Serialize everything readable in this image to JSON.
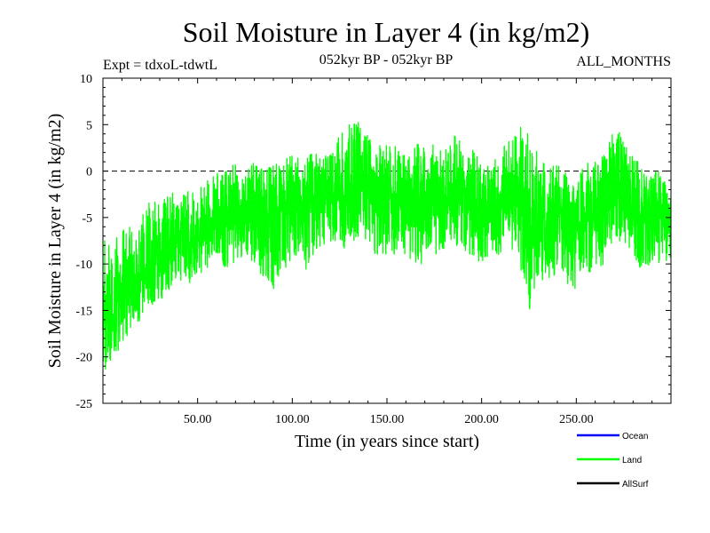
{
  "chart_data": {
    "type": "line",
    "title": "Soil Moisture in Layer 4 (in kg/m2)",
    "subtitle_left": "Expt = tdxoL-tdwtL",
    "subtitle_center": "052kyr BP - 052kyr BP",
    "subtitle_right": "ALL_MONTHS",
    "xlabel": "Time (in years since start)",
    "ylabel": "Soil Moisture in Layer 4 (in kg/m2)",
    "xlim": [
      0,
      300
    ],
    "ylim": [
      -25,
      10
    ],
    "x_ticks": [
      50,
      100,
      150,
      200,
      250
    ],
    "x_tick_labels": [
      "50.00",
      "100.00",
      "150.00",
      "200.00",
      "250.00"
    ],
    "y_ticks": [
      -25,
      -20,
      -15,
      -10,
      -5,
      0,
      5,
      10
    ],
    "y_tick_labels": [
      "-25",
      "-20",
      "-15",
      "-10",
      "-5",
      "0",
      "5",
      "10"
    ],
    "reference_line": {
      "y": 0,
      "style": "dashed",
      "color": "#000000"
    },
    "series": [
      {
        "name": "Ocean",
        "color": "#0000ff",
        "values": []
      },
      {
        "name": "Land",
        "color": "#00ff00",
        "x": [
          0,
          5,
          10,
          15,
          20,
          25,
          30,
          35,
          40,
          45,
          50,
          55,
          60,
          65,
          70,
          75,
          80,
          85,
          90,
          95,
          100,
          105,
          110,
          115,
          120,
          125,
          130,
          135,
          140,
          145,
          150,
          155,
          160,
          165,
          170,
          175,
          180,
          185,
          190,
          195,
          200,
          205,
          210,
          215,
          220,
          225,
          230,
          235,
          240,
          245,
          250,
          255,
          260,
          265,
          270,
          275,
          280,
          285,
          290,
          295,
          300
        ],
        "values": [
          -14,
          -16,
          -12,
          -13,
          -11,
          -10,
          -9,
          -8,
          -7,
          -8,
          -7,
          -6,
          -6,
          -5,
          -4,
          -5,
          -4,
          -5,
          -5,
          -4,
          -3,
          -4,
          -3,
          -2,
          -2,
          -3,
          -2,
          -1,
          -2,
          -3,
          -3,
          -2,
          -3,
          -4,
          -3,
          -3,
          -4,
          -2,
          -3,
          -4,
          -4,
          -5,
          -3,
          -2,
          -3,
          -6,
          -6,
          -5,
          -4,
          -5,
          -6,
          -5,
          -5,
          -3,
          -1,
          -2,
          -4,
          -5,
          -4,
          -5,
          -6
        ],
        "envelope_min": [
          -22,
          -20,
          -19,
          -17,
          -16,
          -15,
          -14,
          -13,
          -12,
          -13,
          -11,
          -11,
          -10,
          -11,
          -10,
          -10,
          -10,
          -12,
          -13,
          -11,
          -10,
          -11,
          -11,
          -8,
          -8,
          -9,
          -8,
          -7,
          -9,
          -9,
          -9,
          -9,
          -9,
          -10,
          -10,
          -9,
          -9,
          -8,
          -9,
          -9,
          -10,
          -9,
          -9,
          -8,
          -10,
          -15,
          -13,
          -12,
          -11,
          -12,
          -13,
          -11,
          -11,
          -10,
          -7,
          -8,
          -10,
          -11,
          -10,
          -10,
          -10
        ],
        "envelope_max": [
          -7,
          -8,
          -6,
          -6,
          -5,
          -3,
          -3,
          -2,
          -2,
          -2,
          -2,
          -1,
          0,
          0,
          1,
          0,
          1,
          0,
          1,
          1,
          2,
          1,
          2,
          3,
          3,
          4,
          5,
          6,
          4,
          3,
          3,
          3,
          2,
          3,
          3,
          3,
          2,
          4,
          3,
          3,
          1,
          1,
          3,
          4,
          5,
          4,
          2,
          1,
          1,
          0,
          0,
          1,
          1,
          2,
          5,
          4,
          2,
          1,
          0,
          0,
          -3
        ]
      },
      {
        "name": "AllSurf",
        "color": "#000000",
        "values": []
      }
    ],
    "legend": [
      {
        "name": "Ocean",
        "color": "#0000ff"
      },
      {
        "name": "Land",
        "color": "#00ff00"
      },
      {
        "name": "AllSurf",
        "color": "#000000"
      }
    ],
    "legend_position": "bottom-right",
    "grid": false
  }
}
